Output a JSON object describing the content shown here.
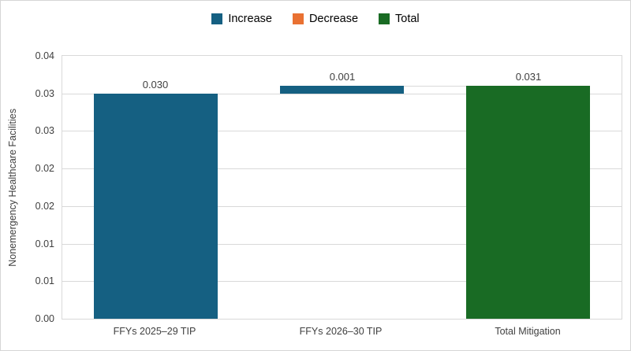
{
  "chart_data": {
    "type": "bar",
    "subtype": "waterfall",
    "title": "",
    "xlabel": "",
    "ylabel": "Nonemergency Healthcare Facilities",
    "categories": [
      "FFYs 2025–29 TIP",
      "FFYs 2026–30 TIP",
      "Total Mitigation"
    ],
    "bars": [
      {
        "category": "FFYs 2025–29 TIP",
        "base": 0,
        "value": 0.03,
        "series": "Increase",
        "data_label": "0.030"
      },
      {
        "category": "FFYs 2026–30 TIP",
        "base": 0.03,
        "value": 0.001,
        "series": "Increase",
        "data_label": "0.001"
      },
      {
        "category": "Total Mitigation",
        "base": 0,
        "value": 0.031,
        "series": "Total",
        "data_label": "0.031"
      }
    ],
    "legend": [
      {
        "label": "Increase",
        "color": "#156082"
      },
      {
        "label": "Decrease",
        "color": "#E97132"
      },
      {
        "label": "Total",
        "color": "#196B24"
      }
    ],
    "legend_position": "top",
    "grid": true,
    "ylim": [
      0,
      0.035
    ],
    "yticks": [
      {
        "value": 0.0,
        "label": "0.00"
      },
      {
        "value": 0.005,
        "label": "0.01"
      },
      {
        "value": 0.01,
        "label": "0.01"
      },
      {
        "value": 0.015,
        "label": "0.02"
      },
      {
        "value": 0.02,
        "label": "0.02"
      },
      {
        "value": 0.025,
        "label": "0.03"
      },
      {
        "value": 0.03,
        "label": "0.03"
      },
      {
        "value": 0.035,
        "label": "0.04"
      }
    ],
    "colors": {
      "grid": "#D9D9D9",
      "plot_border": "#D9D9D9",
      "axis_text": "#404040",
      "legend_text": "#000000",
      "background": "#FFFFFF",
      "outer_border": "#D6D6D6"
    }
  }
}
